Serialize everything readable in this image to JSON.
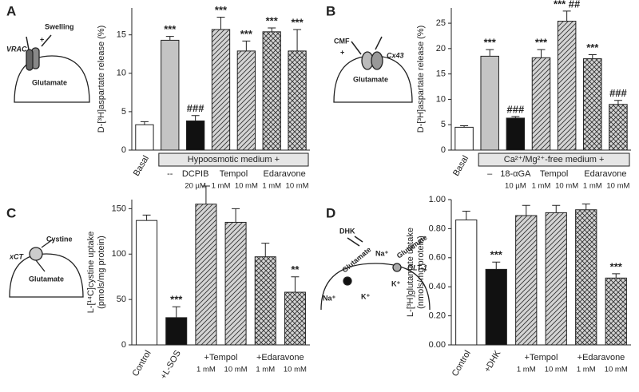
{
  "chart_data": [
    {
      "type": "bar",
      "panel": "A",
      "ylabel": [
        "D-[³H]aspartate release (%)"
      ],
      "categories": [
        "Basal",
        "--",
        "DCPIB",
        "Tempol",
        null,
        "Edaravone",
        null
      ],
      "sublabels": [
        null,
        null,
        "20 µM",
        "1 mM",
        "10 mM",
        "1 mM",
        "10 mM"
      ],
      "bracket_label": "Hypoosmotic medium +",
      "values": [
        3.3,
        14.3,
        3.8,
        15.7,
        12.9,
        15.4,
        12.9
      ],
      "errors": [
        0.4,
        0.5,
        0.7,
        1.6,
        1.3,
        0.5,
        2.8
      ],
      "annotations": [
        null,
        "***",
        "###",
        "***",
        "***",
        "***",
        "***"
      ],
      "colors": [
        "#ffffff",
        "#c4c4c4",
        "#111111",
        "#d4d4d4",
        "#d4d4d4",
        "#d4d4d4",
        "#d4d4d4"
      ],
      "patterns": [
        null,
        null,
        null,
        "diagonal",
        "diagonal",
        "crosshatch",
        "crosshatch"
      ],
      "ylim": [
        0,
        18.5
      ],
      "yticks": [
        0,
        5,
        10,
        15
      ],
      "diagram_labels": [
        "Swelling",
        "+",
        "VRAC",
        "Glutamate"
      ]
    },
    {
      "type": "bar",
      "panel": "B",
      "ylabel": [
        "D-[³H]aspartate release (%)"
      ],
      "categories": [
        "Basal",
        "–",
        "18-αGA",
        "Tempol",
        null,
        "Edaravone",
        null
      ],
      "sublabels": [
        null,
        null,
        "10 µM",
        "1 mM",
        "10 mM",
        "1 mM",
        "10 mM"
      ],
      "bracket_label": "Ca²⁺/Mg²⁺-free medium +",
      "values": [
        4.5,
        18.5,
        6.3,
        18.2,
        25.4,
        18.0,
        9.0
      ],
      "errors": [
        0.3,
        1.3,
        0.3,
        1.6,
        2.0,
        0.8,
        0.8
      ],
      "annotations": [
        null,
        "***",
        "###",
        "***",
        "*** ##",
        "***",
        "###"
      ],
      "colors": [
        "#ffffff",
        "#c4c4c4",
        "#111111",
        "#d4d4d4",
        "#d4d4d4",
        "#d4d4d4",
        "#d4d4d4"
      ],
      "patterns": [
        null,
        null,
        null,
        "diagonal",
        "diagonal",
        "crosshatch",
        "crosshatch"
      ],
      "ylim": [
        0,
        28
      ],
      "yticks": [
        0,
        5,
        10,
        15,
        20,
        25
      ],
      "diagram_labels": [
        "CMF",
        "+",
        "Cx43",
        "Glutamate"
      ]
    },
    {
      "type": "bar",
      "panel": "C",
      "ylabel": [
        "L-[¹⁴C]cystine uptake",
        "(pmols/mg protein)"
      ],
      "categories": [
        "Control",
        "+L-SOS",
        "+Tempol",
        null,
        "+Edaravone",
        null
      ],
      "sublabels": [
        null,
        null,
        "1 mM",
        "10 mM",
        "1 mM",
        "10 mM"
      ],
      "values": [
        137,
        30,
        155,
        135,
        97,
        58
      ],
      "errors": [
        6,
        12,
        20,
        15,
        15,
        17
      ],
      "annotations": [
        null,
        "***",
        null,
        null,
        null,
        "**"
      ],
      "colors": [
        "#ffffff",
        "#111111",
        "#d4d4d4",
        "#d4d4d4",
        "#d4d4d4",
        "#d4d4d4"
      ],
      "patterns": [
        null,
        null,
        "diagonal",
        "diagonal",
        "crosshatch",
        "crosshatch"
      ],
      "ylim": [
        0,
        160
      ],
      "yticks": [
        0,
        50,
        100,
        150
      ],
      "diagram_labels": [
        "xCT",
        "Cystine",
        "Glutamate"
      ]
    },
    {
      "type": "bar",
      "panel": "D",
      "ylabel": [
        "L-[³H]glutamate uptake",
        "(nmols/mg protein)"
      ],
      "categories": [
        "Control",
        "+DHK",
        "+Tempol",
        null,
        "+Edaravone",
        null
      ],
      "sublabels": [
        null,
        null,
        "1 mM",
        "10 mM",
        "1 mM",
        "10 mM"
      ],
      "values": [
        0.86,
        0.52,
        0.89,
        0.91,
        0.93,
        0.46
      ],
      "errors": [
        0.06,
        0.05,
        0.07,
        0.05,
        0.04,
        0.03
      ],
      "annotations": [
        null,
        "***",
        null,
        null,
        null,
        "***"
      ],
      "colors": [
        "#ffffff",
        "#111111",
        "#d4d4d4",
        "#d4d4d4",
        "#d4d4d4",
        "#d4d4d4"
      ],
      "patterns": [
        null,
        null,
        "diagonal",
        "diagonal",
        "crosshatch",
        "crosshatch"
      ],
      "ylim": [
        0,
        1.0
      ],
      "yticks": [
        {
          "value": 0,
          "label": "0.00"
        },
        {
          "value": 0.2,
          "label": "0.20"
        },
        {
          "value": 0.4,
          "label": "0.40"
        },
        {
          "value": 0.6,
          "label": "0.60"
        },
        {
          "value": 0.8,
          "label": "0.80"
        },
        {
          "value": 1.0,
          "label": "1.00"
        }
      ],
      "diagram_labels": [
        "DHK",
        "Glutamate",
        "Glutamate",
        "Na⁺",
        "K⁺",
        "Na⁺",
        "K⁺",
        "GLT-1"
      ]
    }
  ]
}
